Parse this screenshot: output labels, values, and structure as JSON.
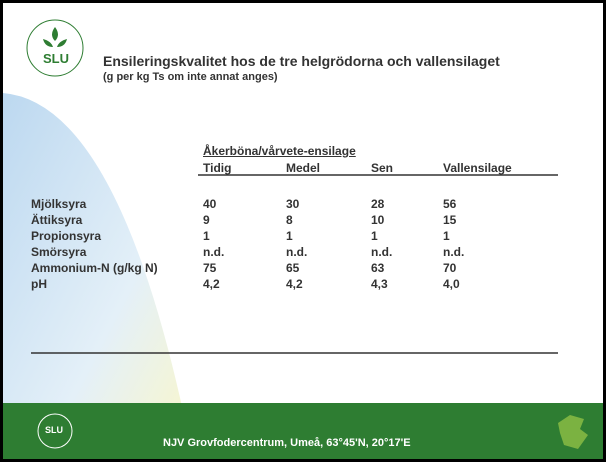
{
  "header": {
    "logo": "SLU",
    "title": "Ensileringskvalitet hos de tre helgrödorna och vallensilaget",
    "subtitle": "(g per kg Ts om inte annat anges)"
  },
  "table": {
    "group_header": "Åkerböna/vårvete-ensilage",
    "columns": [
      "Tidig",
      "Medel",
      "Sen",
      "Vallensilage"
    ],
    "rows": [
      [
        "Mjölksyra",
        "40",
        "30",
        "28",
        "56"
      ],
      [
        "Ättiksyra",
        "9",
        "8",
        "10",
        "15"
      ],
      [
        "Propionsyra",
        "1",
        "1",
        "1",
        "1"
      ],
      [
        "Smörsyra",
        "n.d.",
        "n.d.",
        "n.d.",
        "n.d."
      ],
      [
        "Ammonium-N (g/kg N)",
        "75",
        "65",
        "63",
        "70"
      ],
      [
        "pH",
        "4,2",
        "4,2",
        "4,3",
        "4,0"
      ]
    ]
  },
  "footer": {
    "logo": "SLU",
    "text": "NJV Grovfodercentrum, Umeå, 63°45'N, 20°17'E"
  }
}
